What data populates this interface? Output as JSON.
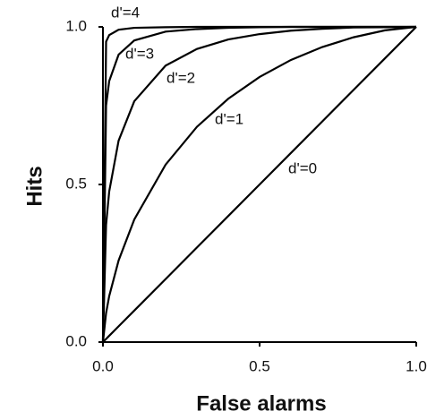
{
  "chart_data": {
    "type": "line",
    "x_label": "False alarms",
    "y_label": "Hits",
    "x": [
      0,
      0.01,
      0.02,
      0.05,
      0.1,
      0.2,
      0.3,
      0.4,
      0.5,
      0.6,
      0.7,
      0.8,
      0.9,
      1
    ],
    "series": [
      {
        "name": "d'=4",
        "color": "#000000",
        "values": [
          0,
          0.953,
          0.974,
          0.991,
          0.997,
          0.999,
          1,
          1,
          1,
          1,
          1,
          1,
          1,
          1
        ]
      },
      {
        "name": "d'=3",
        "color": "#000000",
        "values": [
          0,
          0.75,
          0.828,
          0.912,
          0.957,
          0.985,
          0.993,
          0.997,
          0.999,
          1,
          1,
          1,
          1,
          1
        ]
      },
      {
        "name": "d'=2",
        "color": "#000000",
        "values": [
          0,
          0.372,
          0.478,
          0.639,
          0.764,
          0.877,
          0.93,
          0.96,
          0.977,
          0.988,
          0.994,
          0.998,
          0.999,
          1
        ]
      },
      {
        "name": "d'=1",
        "color": "#000000",
        "values": [
          0,
          0.092,
          0.146,
          0.259,
          0.389,
          0.563,
          0.683,
          0.772,
          0.841,
          0.895,
          0.936,
          0.967,
          0.989,
          1
        ]
      },
      {
        "name": "d'=0",
        "color": "#000000",
        "values": [
          0,
          0.01,
          0.02,
          0.05,
          0.1,
          0.2,
          0.3,
          0.4,
          0.5,
          0.6,
          0.7,
          0.8,
          0.9,
          1
        ]
      }
    ],
    "xlim": [
      0,
      1
    ],
    "ylim": [
      0,
      1
    ],
    "xticks": [
      {
        "value": 0,
        "label": "0.0"
      },
      {
        "value": 0.5,
        "label": "0.5"
      },
      {
        "value": 1,
        "label": "1.0"
      }
    ],
    "yticks": [
      {
        "value": 0,
        "label": "0.0"
      },
      {
        "value": 0.5,
        "label": "0.5"
      },
      {
        "value": 1,
        "label": "1.0"
      }
    ],
    "grid": false
  }
}
